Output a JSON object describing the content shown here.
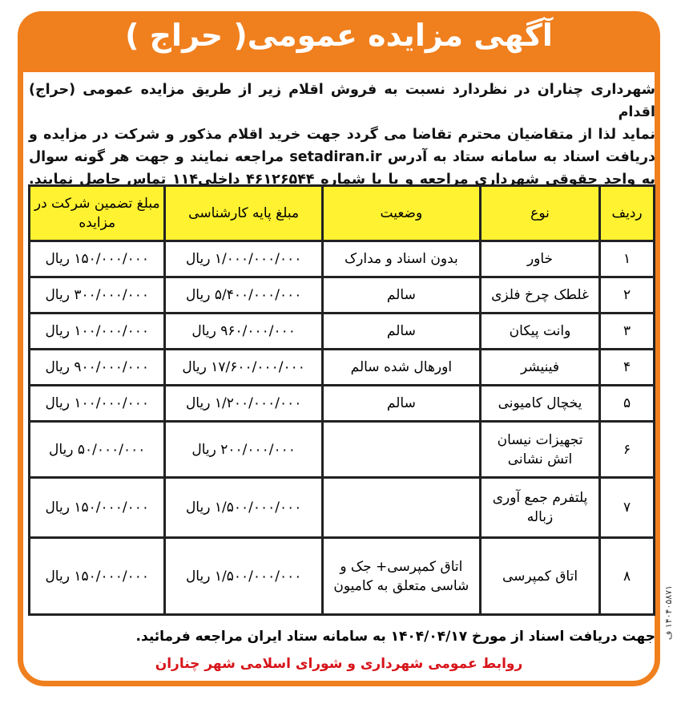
{
  "title": "آگهی مزایده عمومی( حراج )",
  "intro": [
    "شهرداری چناران در نظردارد نسبت به فروش اقلام زیر از طریق مزایده عمومی (حراج) اقدام",
    "نماید لذا از متقاضیان محترم تقاضا می گردد جهت خرید اقلام مذکور و شرکت در مزایده و",
    "دریافت اسناد به سامانه ستاد به آدرس setadiran.ir مراجعه نمایند و جهت هر گونه سوال",
    "به واحد حقوقی شهرداری مراجعه و یا با شماره ۴۶۱۲۶۵۴۴ داخلی۱۱۴ تماس حاصل نمایند."
  ],
  "table": {
    "headers": [
      "ردیف",
      "نوع",
      "وضعیت",
      "مبلغ پایه کارشناسی",
      "مبلغ تضمین شرکت در مزایده"
    ],
    "rows": [
      [
        "۱",
        "خاور",
        "بدون اسناد و مدارک",
        "۱/۰۰۰/۰۰۰/۰۰۰ ریال",
        "۱۵۰/۰۰۰/۰۰۰ ریال"
      ],
      [
        "۲",
        "غلطک چرخ فلزی",
        "سالم",
        "۵/۴۰۰/۰۰۰/۰۰۰ ریال",
        "۳۰۰/۰۰۰/۰۰۰ ریال"
      ],
      [
        "۳",
        "وانت پیکان",
        "سالم",
        "۹۶۰/۰۰۰/۰۰۰ ریال",
        "۱۰۰/۰۰۰/۰۰۰ ریال"
      ],
      [
        "۴",
        "فینیشر",
        "اورهال شده سالم",
        "۱۷/۶۰۰/۰۰۰/۰۰۰ ریال",
        "۹۰۰/۰۰۰/۰۰۰ ریال"
      ],
      [
        "۵",
        "یخچال کامیونی",
        "سالم",
        "۱/۲۰۰/۰۰۰/۰۰۰ ریال",
        "۱۰۰/۰۰۰/۰۰۰ ریال"
      ],
      [
        "۶",
        "تجهیزات نیسان اتش نشانی",
        "",
        "۲۰۰/۰۰۰/۰۰۰ ریال",
        "۵۰/۰۰۰/۰۰۰ ریال"
      ],
      [
        "۷",
        "پلتفرم جمع آوری زباله",
        "",
        "۱/۵۰۰/۰۰۰/۰۰۰ ریال",
        "۱۵۰/۰۰۰/۰۰۰ ریال"
      ],
      [
        "۸",
        "اتاق کمپرسی",
        "اتاق کمپرسی+ جک و شاسی متعلق به کامیون",
        "۱/۵۰۰/۰۰۰/۰۰۰ ریال",
        "۱۵۰/۰۰۰/۰۰۰ ریال"
      ]
    ]
  },
  "footer": "جهت دریافت اسناد  از مورخ ۱۴۰۴/۰۴/۱۷ به سامانه ستاد ایران مراجعه فرمائید.",
  "signature": "روابط عمومی شهرداری و شورای اسلامی شهر چناران",
  "side_code": "۱۴۰۴۰۵۸۷۱ ف",
  "colors": {
    "frame": "#f07f1e",
    "header_fill": "#fff231",
    "signature": "#d7141a"
  }
}
